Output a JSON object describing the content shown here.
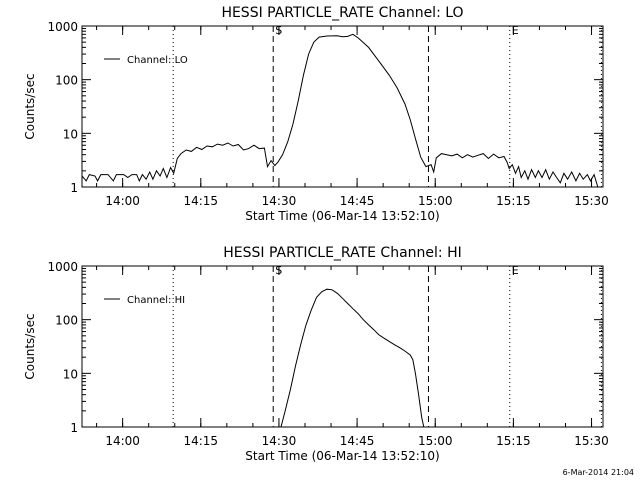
{
  "footer": {
    "timestamp": "6-Mar-2014 21:04"
  },
  "chart_data": [
    {
      "type": "line",
      "title": "HESSI PARTICLE_RATE Channel: LO",
      "xlabel": "Start Time (06-Mar-14 13:52:10)",
      "ylabel": "Counts/sec",
      "yscale": "log",
      "ylim": [
        1,
        1000
      ],
      "xlim_minutes_after_start": [
        0,
        100
      ],
      "y_ticks": [
        {
          "v": 1,
          "label": "1"
        },
        {
          "v": 10,
          "label": "10"
        },
        {
          "v": 100,
          "label": "100"
        },
        {
          "v": 1000,
          "label": "1000"
        }
      ],
      "x_ticks": [
        "14:00",
        "14:15",
        "14:30",
        "14:45",
        "15:00",
        "15:15",
        "15:30"
      ],
      "x_tick_minutes": [
        7.8,
        22.8,
        37.8,
        52.8,
        67.8,
        82.8,
        97.8
      ],
      "legend": {
        "label": "Channel: LO",
        "position": "top-left"
      },
      "markers": [
        {
          "label": "S",
          "minute": 36.7,
          "style": "dashed"
        },
        {
          "label": "",
          "minute": 66.5,
          "style": "dashed"
        },
        {
          "label": "E",
          "minute": 82.1,
          "style": "dotted"
        }
      ],
      "guides": [
        {
          "minute": 17.5,
          "style": "dotted"
        },
        {
          "minute": 99.7,
          "style": "dotted"
        }
      ],
      "series": [
        {
          "values": [
            [
              0,
              1.6
            ],
            [
              0.8,
              1.3
            ],
            [
              1.4,
              1.7
            ],
            [
              2.5,
              1.6
            ],
            [
              3,
              1.3
            ],
            [
              3.6,
              1.7
            ],
            [
              5,
              1.7
            ],
            [
              6,
              1.3
            ],
            [
              6.6,
              1.7
            ],
            [
              8,
              1.7
            ],
            [
              8.8,
              1.5
            ],
            [
              9.6,
              1.7
            ],
            [
              10.5,
              1.7
            ],
            [
              11,
              1.3
            ],
            [
              11.6,
              1.7
            ],
            [
              12.3,
              1.4
            ],
            [
              13,
              1.9
            ],
            [
              13.6,
              1.4
            ],
            [
              14.3,
              2.0
            ],
            [
              15,
              1.6
            ],
            [
              15.6,
              2.2
            ],
            [
              16.3,
              1.5
            ],
            [
              17,
              2.3
            ],
            [
              17.6,
              1.8
            ],
            [
              18.3,
              3.4
            ],
            [
              19,
              4.2
            ],
            [
              20,
              4.9
            ],
            [
              21,
              4.6
            ],
            [
              22,
              5.5
            ],
            [
              23,
              5.0
            ],
            [
              24,
              5.8
            ],
            [
              25,
              5.6
            ],
            [
              26,
              6.3
            ],
            [
              27,
              6.0
            ],
            [
              28,
              6.6
            ],
            [
              29,
              5.8
            ],
            [
              30,
              6.2
            ],
            [
              31,
              4.9
            ],
            [
              32,
              5.2
            ],
            [
              33,
              6.0
            ],
            [
              34,
              5.2
            ],
            [
              35,
              5.3
            ],
            [
              35.6,
              2.4
            ],
            [
              36.3,
              3.1
            ],
            [
              37,
              2.5
            ],
            [
              37.6,
              2.9
            ],
            [
              38.5,
              4.0
            ],
            [
              39.5,
              7.0
            ],
            [
              40.5,
              15
            ],
            [
              41.5,
              40
            ],
            [
              42.5,
              120
            ],
            [
              43.5,
              300
            ],
            [
              44.5,
              500
            ],
            [
              45.5,
              620
            ],
            [
              47,
              650
            ],
            [
              49,
              660
            ],
            [
              50,
              630
            ],
            [
              51,
              640
            ],
            [
              52,
              700
            ],
            [
              53,
              600
            ],
            [
              55,
              400
            ],
            [
              57,
              220
            ],
            [
              59,
              120
            ],
            [
              60.5,
              70
            ],
            [
              62,
              35
            ],
            [
              63,
              18
            ],
            [
              64,
              8
            ],
            [
              65,
              3.6
            ],
            [
              66,
              2.4
            ],
            [
              67,
              2.6
            ],
            [
              67.5,
              1.9
            ],
            [
              68,
              3.5
            ],
            [
              69,
              4.2
            ],
            [
              70,
              4.0
            ],
            [
              71,
              3.8
            ],
            [
              72,
              4.1
            ],
            [
              73,
              3.5
            ],
            [
              74,
              4.0
            ],
            [
              75,
              3.6
            ],
            [
              76,
              3.9
            ],
            [
              77,
              4.2
            ],
            [
              78,
              3.4
            ],
            [
              79,
              4.1
            ],
            [
              80,
              3.5
            ],
            [
              81,
              3.7
            ],
            [
              81.6,
              2.9
            ],
            [
              82,
              2.2
            ],
            [
              82.6,
              2.6
            ],
            [
              83.2,
              1.8
            ],
            [
              83.8,
              2.4
            ],
            [
              84.3,
              1.5
            ],
            [
              85,
              2.0
            ],
            [
              85.6,
              1.4
            ],
            [
              86.3,
              2.1
            ],
            [
              87,
              1.5
            ],
            [
              87.6,
              2.0
            ],
            [
              88.3,
              1.5
            ],
            [
              89,
              2.1
            ],
            [
              89.7,
              1.4
            ],
            [
              90.4,
              1.9
            ],
            [
              91.1,
              1.5
            ],
            [
              91.8,
              1.2
            ],
            [
              92.5,
              1.8
            ],
            [
              93.2,
              1.4
            ],
            [
              94,
              1.9
            ],
            [
              94.8,
              1.3
            ],
            [
              95.5,
              1.8
            ],
            [
              96.2,
              1.4
            ],
            [
              97,
              1.7
            ],
            [
              97.6,
              1.3
            ],
            [
              98.3,
              1.7
            ],
            [
              99,
              1.0
            ],
            [
              100,
              1.0
            ]
          ]
        }
      ]
    },
    {
      "type": "line",
      "title": "HESSI PARTICLE_RATE Channel: HI",
      "xlabel": "Start Time (06-Mar-14 13:52:10)",
      "ylabel": "Counts/sec",
      "yscale": "log",
      "ylim": [
        1,
        1000
      ],
      "xlim_minutes_after_start": [
        0,
        100
      ],
      "y_ticks": [
        {
          "v": 1,
          "label": "1"
        },
        {
          "v": 10,
          "label": "10"
        },
        {
          "v": 100,
          "label": "100"
        },
        {
          "v": 1000,
          "label": "1000"
        }
      ],
      "x_ticks": [
        "14:00",
        "14:15",
        "14:30",
        "14:45",
        "15:00",
        "15:15",
        "15:30"
      ],
      "x_tick_minutes": [
        7.8,
        22.8,
        37.8,
        52.8,
        67.8,
        82.8,
        97.8
      ],
      "legend": {
        "label": "Channel: HI",
        "position": "top-left"
      },
      "markers": [
        {
          "label": "S",
          "minute": 36.7,
          "style": "dashed"
        },
        {
          "label": "",
          "minute": 66.5,
          "style": "dashed"
        },
        {
          "label": "E",
          "minute": 82.1,
          "style": "dotted"
        }
      ],
      "guides": [
        {
          "minute": 17.5,
          "style": "dotted"
        },
        {
          "minute": 99.7,
          "style": "dotted"
        }
      ],
      "series": [
        {
          "values": [
            [
              38.2,
              1.0
            ],
            [
              39,
              2.0
            ],
            [
              40,
              5.0
            ],
            [
              41,
              14
            ],
            [
              42,
              35
            ],
            [
              43,
              80
            ],
            [
              44,
              150
            ],
            [
              45,
              260
            ],
            [
              46,
              330
            ],
            [
              47,
              370
            ],
            [
              48,
              360
            ],
            [
              49,
              310
            ],
            [
              50,
              250
            ],
            [
              51,
              200
            ],
            [
              52,
              160
            ],
            [
              53,
              130
            ],
            [
              54,
              100
            ],
            [
              55,
              80
            ],
            [
              56,
              65
            ],
            [
              57,
              52
            ],
            [
              58,
              45
            ],
            [
              59,
              39
            ],
            [
              60,
              34
            ],
            [
              61,
              30
            ],
            [
              62,
              26
            ],
            [
              63,
              22
            ],
            [
              63.5,
              18
            ],
            [
              64,
              10
            ],
            [
              64.6,
              4
            ],
            [
              65.2,
              1.5
            ],
            [
              65.6,
              1.0
            ]
          ]
        }
      ]
    }
  ]
}
